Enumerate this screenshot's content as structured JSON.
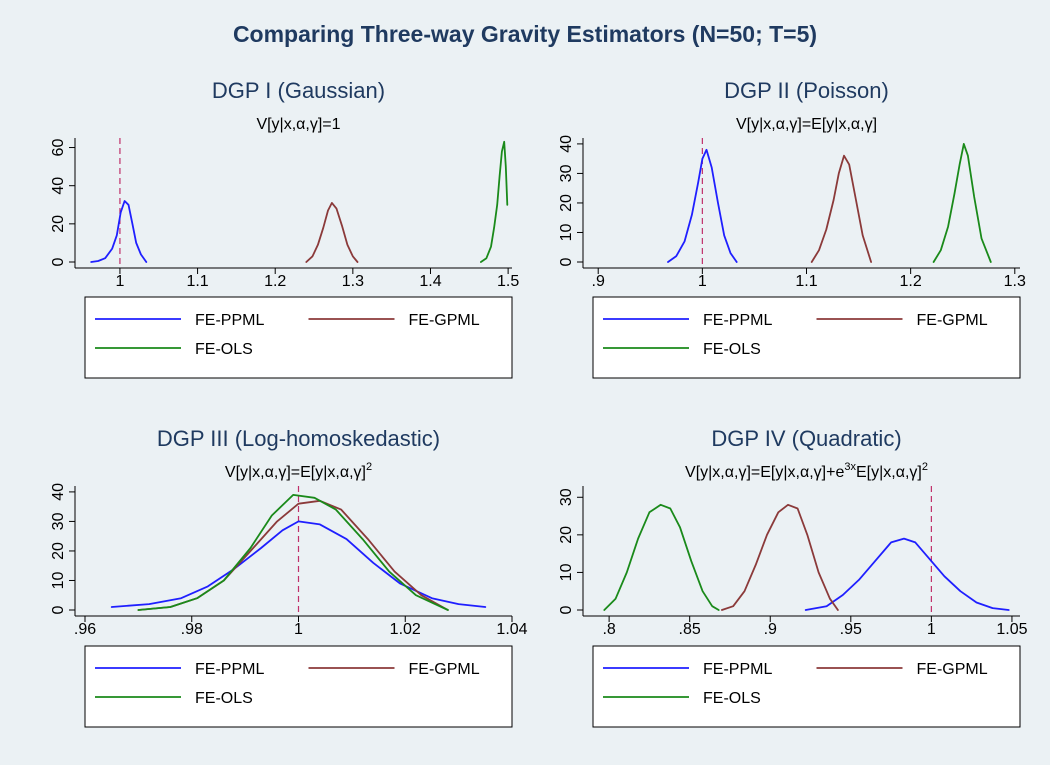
{
  "figure": {
    "title": "Comparing Three-way Gravity Estimators (N=50; T=5)"
  },
  "colors": {
    "background": "#ebf1f4",
    "plot_background": "#ebf1f4",
    "title": "#1f3a60",
    "FE-PPML": "#1f1fff",
    "FE-GPML": "#8b3a3a",
    "FE-OLS": "#1a8a1a",
    "reference_line": "#c0306a"
  },
  "legend": {
    "entries": [
      "FE-PPML",
      "FE-GPML",
      "FE-OLS"
    ]
  },
  "chart_data": [
    {
      "id": "dgp1",
      "type": "line",
      "title": "DGP I (Gaussian)",
      "subtitle": "V[y|x,α,γ]=1",
      "xlabel": "",
      "ylabel": "",
      "xlim": [
        0.955,
        1.505
      ],
      "ylim": [
        0,
        65
      ],
      "xticks": [
        1,
        1.1,
        1.2,
        1.3,
        1.4,
        1.5
      ],
      "xtick_labels": [
        "1",
        "1.1",
        "1.2",
        "1.3",
        "1.4",
        "1.5"
      ],
      "yticks": [
        0,
        20,
        40,
        60
      ],
      "ytick_labels": [
        "0",
        "20",
        "40",
        "60"
      ],
      "reference_x": 1,
      "series": [
        {
          "name": "FE-PPML",
          "x": [
            0.963,
            0.972,
            0.981,
            0.99,
            0.996,
            1.001,
            1.006,
            1.011,
            1.016,
            1.021,
            1.027,
            1.034
          ],
          "y": [
            0,
            0.5,
            2,
            7,
            14,
            26,
            32,
            30,
            20,
            10,
            4,
            0
          ]
        },
        {
          "name": "FE-GPML",
          "x": [
            1.24,
            1.248,
            1.255,
            1.262,
            1.268,
            1.273,
            1.279,
            1.286,
            1.293,
            1.3,
            1.306
          ],
          "y": [
            0,
            3,
            9,
            18,
            27,
            31,
            28,
            19,
            9,
            3,
            0
          ]
        },
        {
          "name": "FE-OLS",
          "x": [
            1.465,
            1.472,
            1.478,
            1.482,
            1.486,
            1.489,
            1.492,
            1.495,
            1.497,
            1.499
          ],
          "y": [
            0,
            2,
            8,
            18,
            30,
            45,
            58,
            63,
            50,
            30
          ]
        }
      ],
      "legend_position": "bottom"
    },
    {
      "id": "dgp2",
      "type": "line",
      "title": "DGP II (Poisson)",
      "subtitle": "V[y|x,α,γ]=E[y|x,α,γ]",
      "xlabel": "",
      "ylabel": "",
      "xlim": [
        0.895,
        1.305
      ],
      "ylim": [
        0,
        42
      ],
      "xticks": [
        0.9,
        1,
        1.1,
        1.2,
        1.3
      ],
      "xtick_labels": [
        ".9",
        "1",
        "1.1",
        "1.2",
        "1.3"
      ],
      "yticks": [
        0,
        10,
        20,
        30,
        40
      ],
      "ytick_labels": [
        "0",
        "10",
        "20",
        "30",
        "40"
      ],
      "reference_x": 1,
      "series": [
        {
          "name": "FE-PPML",
          "x": [
            0.967,
            0.975,
            0.983,
            0.99,
            0.996,
            1.0,
            1.004,
            1.009,
            1.015,
            1.021,
            1.027,
            1.033
          ],
          "y": [
            0,
            2,
            7,
            16,
            27,
            35,
            38,
            32,
            20,
            9,
            3,
            0
          ]
        },
        {
          "name": "FE-GPML",
          "x": [
            1.105,
            1.112,
            1.119,
            1.126,
            1.131,
            1.136,
            1.141,
            1.147,
            1.154,
            1.162
          ],
          "y": [
            0,
            4,
            11,
            21,
            30,
            36,
            33,
            22,
            9,
            0
          ]
        },
        {
          "name": "FE-OLS",
          "x": [
            1.222,
            1.229,
            1.236,
            1.242,
            1.247,
            1.251,
            1.255,
            1.261,
            1.268,
            1.277
          ],
          "y": [
            0,
            4,
            12,
            23,
            33,
            40,
            36,
            22,
            8,
            0
          ]
        }
      ],
      "legend_position": "bottom"
    },
    {
      "id": "dgp3",
      "type": "line",
      "title": "DGP III (Log-homoskedastic)",
      "subtitle_base": "V[y|x,α,γ]=E[y|x,α,γ]",
      "subtitle_sup": "2",
      "xlabel": "",
      "ylabel": "",
      "xlim": [
        0.96,
        1.04
      ],
      "ylim": [
        0,
        42
      ],
      "xticks": [
        0.96,
        0.98,
        1,
        1.02,
        1.04
      ],
      "xtick_labels": [
        ".96",
        ".98",
        "1",
        "1.02",
        "1.04"
      ],
      "yticks": [
        0,
        10,
        20,
        30,
        40
      ],
      "ytick_labels": [
        "0",
        "10",
        "20",
        "30",
        "40"
      ],
      "reference_x": 1,
      "series": [
        {
          "name": "FE-PPML",
          "x": [
            0.965,
            0.972,
            0.978,
            0.983,
            0.988,
            0.993,
            0.997,
            1.0,
            1.004,
            1.009,
            1.014,
            1.019,
            1.025,
            1.03,
            1.035
          ],
          "y": [
            1,
            2,
            4,
            8,
            14,
            21,
            27,
            30,
            29,
            24,
            16,
            9,
            4,
            2,
            1
          ]
        },
        {
          "name": "FE-GPML",
          "x": [
            0.97,
            0.976,
            0.981,
            0.986,
            0.991,
            0.996,
            1.0,
            1.004,
            1.008,
            1.013,
            1.018,
            1.023,
            1.028
          ],
          "y": [
            0,
            1,
            4,
            10,
            20,
            30,
            36,
            37,
            34,
            24,
            13,
            5,
            0
          ]
        },
        {
          "name": "FE-OLS",
          "x": [
            0.97,
            0.976,
            0.981,
            0.986,
            0.991,
            0.995,
            0.999,
            1.003,
            1.007,
            1.012,
            1.017,
            1.022,
            1.028
          ],
          "y": [
            0,
            1,
            4,
            10,
            21,
            32,
            39,
            38,
            34,
            24,
            13,
            5,
            0
          ]
        }
      ],
      "legend_position": "bottom"
    },
    {
      "id": "dgp4",
      "type": "line",
      "title": "DGP IV (Quadratic)",
      "subtitle_parts": [
        "V[y|x,α,γ]=E[y|x,α,γ]+e",
        "3x",
        "E[y|x,α,γ]",
        "2"
      ],
      "xlabel": "",
      "ylabel": "",
      "xlim": [
        0.79,
        1.055
      ],
      "ylim": [
        0,
        33
      ],
      "xticks": [
        0.8,
        0.85,
        0.9,
        0.95,
        1,
        1.05
      ],
      "xtick_labels": [
        ".8",
        ".85",
        ".9",
        ".95",
        "1",
        "1.05"
      ],
      "yticks": [
        0,
        10,
        20,
        30
      ],
      "ytick_labels": [
        "0",
        "10",
        "20",
        "30"
      ],
      "reference_x": 1,
      "series": [
        {
          "name": "FE-PPML",
          "x": [
            0.922,
            0.935,
            0.945,
            0.955,
            0.965,
            0.975,
            0.983,
            0.99,
            0.998,
            1.008,
            1.018,
            1.028,
            1.038,
            1.048
          ],
          "y": [
            0,
            1,
            4,
            8,
            13,
            18,
            19,
            18,
            14,
            9,
            5,
            2,
            0.5,
            0
          ]
        },
        {
          "name": "FE-GPML",
          "x": [
            0.87,
            0.877,
            0.884,
            0.891,
            0.898,
            0.905,
            0.911,
            0.917,
            0.923,
            0.93,
            0.937,
            0.942
          ],
          "y": [
            0,
            1,
            5,
            12,
            20,
            26,
            28,
            27,
            20,
            10,
            3,
            0
          ]
        },
        {
          "name": "FE-OLS",
          "x": [
            0.797,
            0.804,
            0.811,
            0.818,
            0.825,
            0.832,
            0.838,
            0.844,
            0.851,
            0.858,
            0.864,
            0.868
          ],
          "y": [
            0,
            3,
            10,
            19,
            26,
            28,
            27,
            22,
            13,
            5,
            1,
            0
          ]
        }
      ],
      "legend_position": "bottom"
    }
  ]
}
